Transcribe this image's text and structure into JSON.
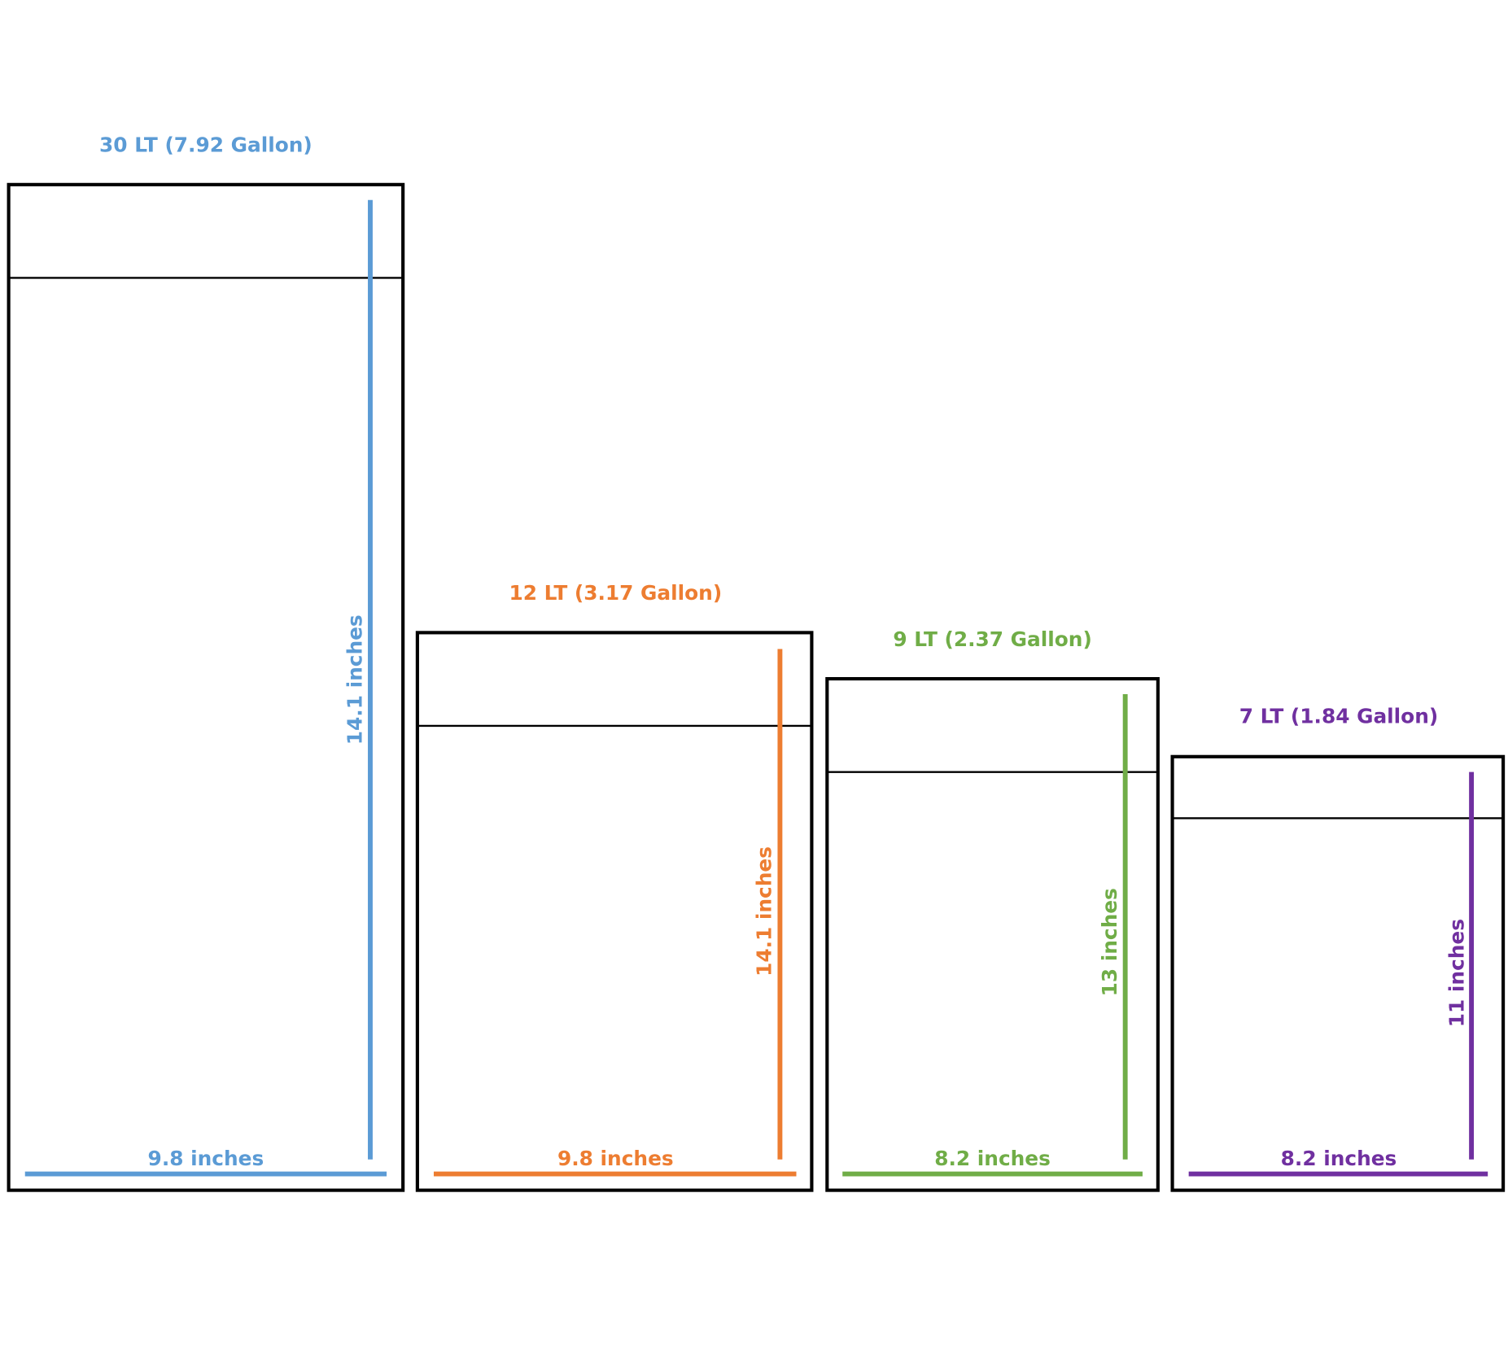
{
  "bags": [
    {
      "title": "30 LT (7.92 Gallon)",
      "height": "14.1 inches",
      "width": "9.8 inches"
    },
    {
      "title": "12 LT (3.17 Gallon)",
      "height": "14.1 inches",
      "width": "9.8 inches"
    },
    {
      "title": "9 LT (2.37 Gallon)",
      "height": "13 inches",
      "width": "8.2 inches"
    },
    {
      "title": "7 LT (1.84 Gallon)",
      "height": "11 inches",
      "width": "8.2 inches"
    }
  ]
}
